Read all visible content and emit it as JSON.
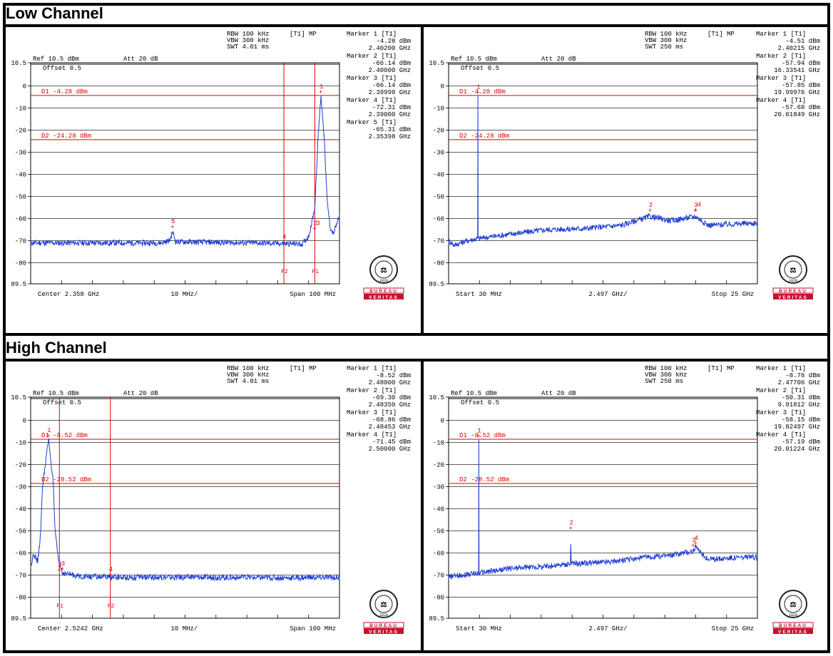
{
  "sections": {
    "low": "Low Channel",
    "high": "High Channel"
  },
  "colors": {
    "trace": "#1f3fd0",
    "marker": "#e00000",
    "grid": "#000000"
  },
  "logo": {
    "top": "BUREAU",
    "bottom": "VERITAS",
    "seal_year": "1828"
  },
  "chart_data": [
    {
      "type": "line",
      "panel": "low-band-edge",
      "rbw": "RBW 100 kHz",
      "vbw": "VBW 300 kHz",
      "swt": "SWT 4.01 ms",
      "trace_label": "[T1] MP",
      "ref": "Ref 10.5 dBm",
      "att": "Att  20 dB",
      "offset": "Offset 0.5",
      "ylim": [
        -89.5,
        10.5
      ],
      "yticks": [
        "10.5",
        "0",
        "-10",
        "-20",
        "-30",
        "-40",
        "-50",
        "-60",
        "-70",
        "-80",
        "89.5"
      ],
      "x_left": "Center 2.358 GHz",
      "x_mid": "10 MHz/",
      "x_right": "Span 100 MHz",
      "xlim": [
        2.308,
        2.408
      ],
      "lines": [
        {
          "label": "D1 -4.28 dBm",
          "y": -4.28
        },
        {
          "label": "D2 -24.28 dBm",
          "y": -24.28
        }
      ],
      "vlines": [
        {
          "label": "F2",
          "x": 2.39
        },
        {
          "label": "F1",
          "x": 2.4
        }
      ],
      "markers": [
        {
          "id": "1",
          "x": 2.402,
          "y": -4.28
        },
        {
          "id": "2",
          "x": 2.4,
          "y": -66.14
        },
        {
          "id": "3",
          "x": 2.39998,
          "y": -66.14
        },
        {
          "id": "4",
          "x": 2.39,
          "y": -72.31
        },
        {
          "id": "5",
          "x": 2.35398,
          "y": -65.31
        }
      ],
      "marker_text": [
        [
          "Marker 1 [T1]",
          "-4.28 dBm",
          "2.40200 GHz"
        ],
        [
          "Marker 2 [T1]",
          "-66.14 dBm",
          "2.40000 GHz"
        ],
        [
          "Marker 3 [T1]",
          "-66.14 dBm",
          "2.39998 GHz"
        ],
        [
          "Marker 4 [T1]",
          "-72.31 dBm",
          "2.39000 GHz"
        ],
        [
          "Marker 5 [T1]",
          "-65.31 dBm",
          "2.35398 GHz"
        ]
      ],
      "trace": [
        [
          2.308,
          -71
        ],
        [
          2.33,
          -71
        ],
        [
          2.35,
          -71
        ],
        [
          2.353,
          -70
        ],
        [
          2.354,
          -66
        ],
        [
          2.355,
          -70.5
        ],
        [
          2.38,
          -71
        ],
        [
          2.396,
          -71.5
        ],
        [
          2.398,
          -68
        ],
        [
          2.399,
          -62
        ],
        [
          2.4,
          -55
        ],
        [
          2.401,
          -25
        ],
        [
          2.402,
          -4.3
        ],
        [
          2.403,
          -22
        ],
        [
          2.404,
          -52
        ],
        [
          2.405,
          -64
        ],
        [
          2.406,
          -67
        ],
        [
          2.407,
          -63
        ],
        [
          2.408,
          -59
        ]
      ]
    },
    {
      "type": "line",
      "panel": "low-spurious",
      "rbw": "RBW 100 kHz",
      "vbw": "VBW 300 kHz",
      "swt": "SWT 250 ms",
      "trace_label": "[T1] MP",
      "ref": "Ref 10.5 dBm",
      "att": "Att  20 dB",
      "offset": "Offset 0.5",
      "ylim": [
        -89.5,
        10.5
      ],
      "yticks": [
        "10.5",
        "0",
        "-10",
        "-20",
        "-30",
        "-40",
        "-50",
        "-60",
        "-70",
        "-80",
        "89.5"
      ],
      "x_left": "Start 30 MHz",
      "x_mid": "2.497 GHz/",
      "x_right": "Stop 25 GHz",
      "xlim": [
        0.03,
        25
      ],
      "lines": [
        {
          "label": "D1 -4.28 dBm",
          "y": -4.28
        },
        {
          "label": "D2 -24.28 dBm",
          "y": -24.28
        }
      ],
      "vlines": [],
      "markers": [
        {
          "id": "1",
          "x": 2.40215,
          "y": -4.51
        },
        {
          "id": "2",
          "x": 16.33541,
          "y": -57.94
        },
        {
          "id": "3",
          "x": 19.99976,
          "y": -57.85
        },
        {
          "id": "4",
          "x": 20.01849,
          "y": -57.68
        }
      ],
      "marker_text": [
        [
          "Marker 1 [T1]",
          "-4.51 dBm",
          "2.40215 GHz"
        ],
        [
          "Marker 2 [T1]",
          "-57.94 dBm",
          "16.33541 GHz"
        ],
        [
          "Marker 3 [T1]",
          "-57.85 dBm",
          "19.99976 GHz"
        ],
        [
          "Marker 4 [T1]",
          "-57.68 dBm",
          "20.01849 GHz"
        ]
      ],
      "trace": [
        [
          0.03,
          -70
        ],
        [
          0.5,
          -72
        ],
        [
          1.5,
          -70
        ],
        [
          2.39,
          -69
        ],
        [
          2.402,
          -4.5
        ],
        [
          2.41,
          -69
        ],
        [
          5,
          -67
        ],
        [
          8,
          -65
        ],
        [
          11,
          -64.5
        ],
        [
          14,
          -63
        ],
        [
          16.3,
          -59
        ],
        [
          18,
          -61
        ],
        [
          20,
          -59
        ],
        [
          21,
          -63
        ],
        [
          23,
          -62.5
        ],
        [
          25,
          -62
        ]
      ]
    },
    {
      "type": "line",
      "panel": "high-band-edge",
      "rbw": "RBW 100 kHz",
      "vbw": "VBW 300 kHz",
      "swt": "SWT 4.01 ms",
      "trace_label": "[T1] MP",
      "ref": "Ref 10.5 dBm",
      "att": "Att  20 dB",
      "offset": "Offset 0.5",
      "ylim": [
        -89.5,
        10.5
      ],
      "yticks": [
        "10.5",
        "0",
        "-10",
        "-20",
        "-30",
        "-40",
        "-50",
        "-60",
        "-70",
        "-80",
        "89.5"
      ],
      "x_left": "Center 2.5242 GHz",
      "x_mid": "10 MHz/",
      "x_right": "Span 100 MHz",
      "xlim": [
        2.4742,
        2.5742
      ],
      "lines": [
        {
          "label": "D1 -8.52 dBm",
          "y": -8.52
        },
        {
          "label": "D2 -28.52 dBm",
          "y": -28.52
        }
      ],
      "vlines": [
        {
          "label": "F1",
          "x": 2.4835
        },
        {
          "label": "F2",
          "x": 2.5
        }
      ],
      "markers": [
        {
          "id": "1",
          "x": 2.48,
          "y": -8.52
        },
        {
          "id": "2",
          "x": 2.4835,
          "y": -69.3
        },
        {
          "id": "3",
          "x": 2.48453,
          "y": -68.86
        },
        {
          "id": "4",
          "x": 2.5,
          "y": -71.45
        }
      ],
      "marker_text": [
        [
          "Marker 1 [T1]",
          "-8.52 dBm",
          "2.48000 GHz"
        ],
        [
          "Marker 2 [T1]",
          "-69.30 dBm",
          "2.48350 GHz"
        ],
        [
          "Marker 3 [T1]",
          "-68.86 dBm",
          "2.48453 GHz"
        ],
        [
          "Marker 4 [T1]",
          "-71.45 dBm",
          "2.50000 GHz"
        ]
      ],
      "trace": [
        [
          2.4742,
          -67
        ],
        [
          2.475,
          -60
        ],
        [
          2.4765,
          -64
        ],
        [
          2.4775,
          -50
        ],
        [
          2.478,
          -30
        ],
        [
          2.48,
          -8.5
        ],
        [
          2.4815,
          -28
        ],
        [
          2.482,
          -48
        ],
        [
          2.483,
          -62
        ],
        [
          2.4845,
          -69
        ],
        [
          2.49,
          -70.5
        ],
        [
          2.5,
          -71
        ],
        [
          2.53,
          -71
        ],
        [
          2.56,
          -71.2
        ],
        [
          2.5742,
          -71
        ]
      ]
    },
    {
      "type": "line",
      "panel": "high-spurious",
      "rbw": "RBW 100 kHz",
      "vbw": "VBW 300 kHz",
      "swt": "SWT 250 ms",
      "trace_label": "[T1] MP",
      "ref": "Ref 10.5 dBm",
      "att": "Att  20 dB",
      "offset": "Offset 0.5",
      "ylim": [
        -89.5,
        10.5
      ],
      "yticks": [
        "10.5",
        "0",
        "-10",
        "-20",
        "-30",
        "-40",
        "-50",
        "-60",
        "-70",
        "-80",
        "89.5"
      ],
      "x_left": "Start 30 MHz",
      "x_mid": "2.497 GHz/",
      "x_right": "Stop 25 GHz",
      "xlim": [
        0.03,
        25
      ],
      "lines": [
        {
          "label": "D1 -8.52 dBm",
          "y": -8.52
        },
        {
          "label": "D2 -28.52 dBm",
          "y": -28.52
        }
      ],
      "vlines": [],
      "markers": [
        {
          "id": "1",
          "x": 2.47706,
          "y": -8.76
        },
        {
          "id": "2",
          "x": 9.91812,
          "y": -50.31
        },
        {
          "id": "3",
          "x": 19.82497,
          "y": -58.15
        },
        {
          "id": "4",
          "x": 20.01224,
          "y": -57.19
        }
      ],
      "marker_text": [
        [
          "Marker 1 [T1]",
          "-8.76 dBm",
          "2.47706 GHz"
        ],
        [
          "Marker 2 [T1]",
          "-50.31 dBm",
          "9.91812 GHz"
        ],
        [
          "Marker 3 [T1]",
          "-58.15 dBm",
          "19.82497 GHz"
        ],
        [
          "Marker 4 [T1]",
          "-57.19 dBm",
          "20.01224 GHz"
        ]
      ],
      "trace": [
        [
          0.03,
          -71
        ],
        [
          1,
          -70
        ],
        [
          2.46,
          -69
        ],
        [
          2.477,
          -8.8
        ],
        [
          2.49,
          -69
        ],
        [
          5,
          -67
        ],
        [
          8,
          -66
        ],
        [
          9.9,
          -65
        ],
        [
          9.918,
          -50.3
        ],
        [
          9.93,
          -65
        ],
        [
          13,
          -64
        ],
        [
          16,
          -62
        ],
        [
          18,
          -61
        ],
        [
          19.8,
          -59
        ],
        [
          20,
          -57.5
        ],
        [
          21,
          -63
        ],
        [
          23,
          -62
        ],
        [
          25,
          -62
        ]
      ]
    }
  ]
}
